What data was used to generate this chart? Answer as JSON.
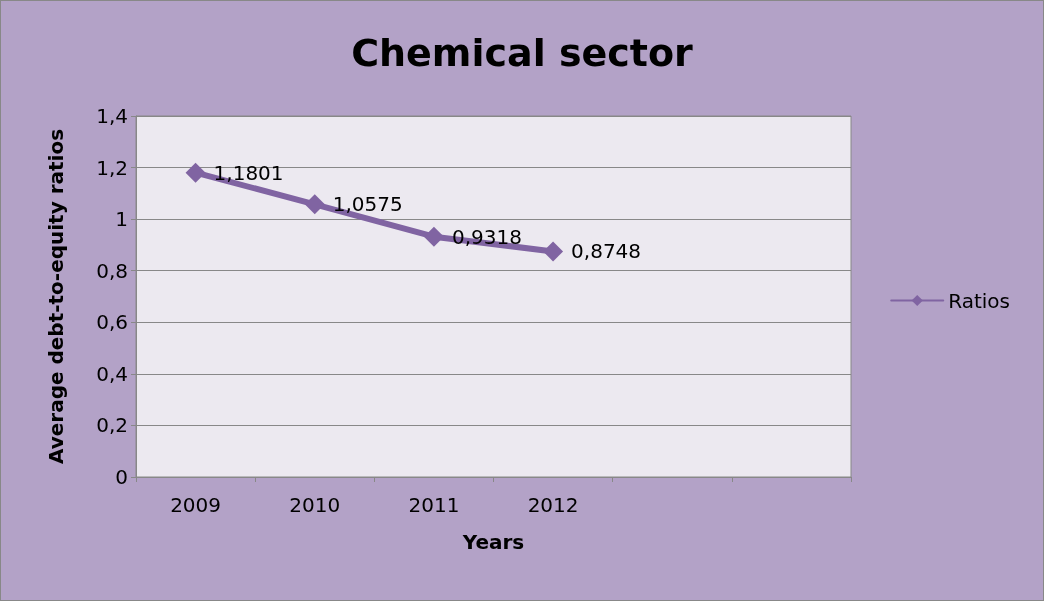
{
  "chart_data": {
    "type": "line",
    "title": "Chemical sector",
    "xlabel": "Years",
    "ylabel": "Average debt-to-equity ratios",
    "categories": [
      "2009",
      "2010",
      "2011",
      "2012",
      null,
      null
    ],
    "series": [
      {
        "name": "Ratios",
        "color": "#8064a2",
        "values": [
          1.1801,
          1.0575,
          0.9318,
          0.8748,
          null,
          null
        ],
        "value_labels": [
          "1,1801",
          "1,0575",
          "0,9318",
          "0,8748",
          null,
          null
        ]
      }
    ],
    "ylim": [
      0,
      1.4
    ],
    "yticks": [
      0,
      {
        "value": 0.2,
        "label": "0,2"
      },
      {
        "value": 0.4,
        "label": "0,4"
      },
      {
        "value": 0.6,
        "label": "0,6"
      },
      {
        "value": 0.8,
        "label": "0,8"
      },
      1,
      {
        "value": 1.2,
        "label": "1,2"
      },
      {
        "value": 1.4,
        "label": "1,4"
      }
    ],
    "grid": "y",
    "legend": "right",
    "marker": "diamond",
    "line_style": "solid"
  }
}
